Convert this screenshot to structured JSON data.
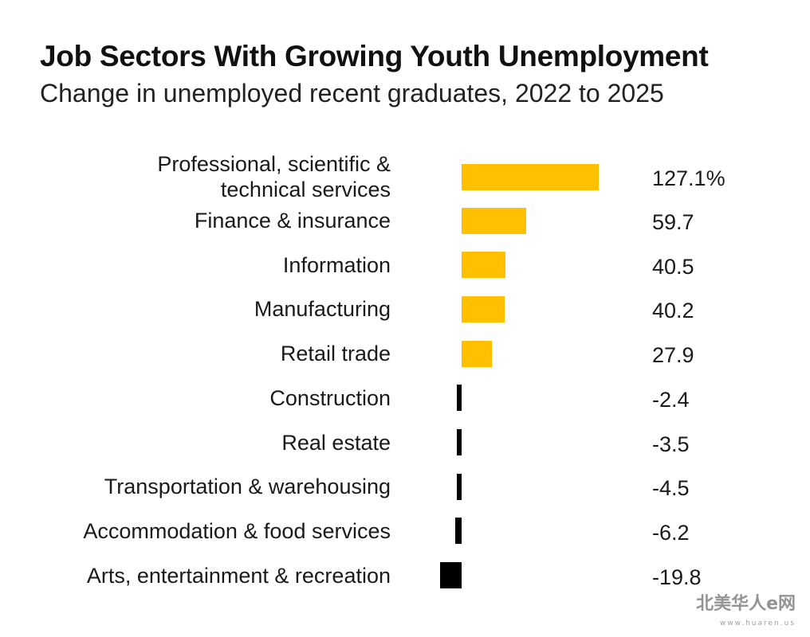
{
  "chart_data": {
    "type": "bar",
    "orientation": "horizontal",
    "title": "Job Sectors With Growing Youth Unemployment",
    "subtitle": "Change in unemployed recent graduates, 2022 to 2025",
    "categories": [
      "Professional, scientific & technical services",
      "Finance & insurance",
      "Information",
      "Manufacturing",
      "Retail trade",
      "Construction",
      "Real estate",
      "Transportation & warehousing",
      "Accommodation & food services",
      "Arts, entertainment & recreation"
    ],
    "values": [
      127.1,
      59.7,
      40.5,
      40.2,
      27.9,
      -2.4,
      -3.5,
      -4.5,
      -6.2,
      -19.8
    ],
    "value_labels": [
      "127.1%",
      "59.7",
      "40.5",
      "40.2",
      "27.9",
      "-2.4",
      "-3.5",
      "-4.5",
      "-6.2",
      "-19.8"
    ],
    "colors": {
      "positive": "#FFC000",
      "negative": "#000000"
    },
    "grid": false,
    "legend": "none"
  },
  "watermark": {
    "main": "北美华人e网",
    "sub": "www.huaren.us"
  }
}
